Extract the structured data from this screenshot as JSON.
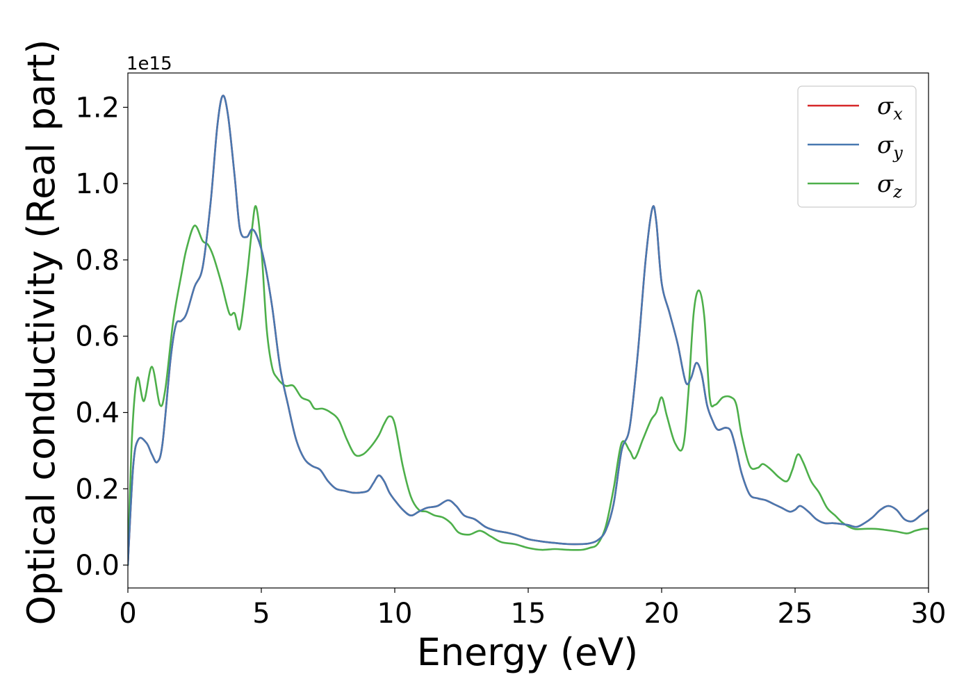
{
  "chart_data": {
    "type": "line",
    "title": "",
    "xlabel": "Energy (eV)",
    "ylabel": "Optical conductivity (Real part)",
    "y_offset_label": "1e15",
    "y_scale": 1000000000000000.0,
    "xlim": [
      0,
      30
    ],
    "ylim": [
      -0.06,
      1.29
    ],
    "xticks": [
      0,
      5,
      10,
      15,
      20,
      25,
      30
    ],
    "xtick_labels": [
      "0",
      "5",
      "10",
      "15",
      "20",
      "25",
      "30"
    ],
    "yticks": [
      0.0,
      0.2,
      0.4,
      0.6,
      0.8,
      1.0,
      1.2
    ],
    "ytick_labels": [
      "0.0",
      "0.2",
      "0.4",
      "0.6",
      "0.8",
      "1.0",
      "1.2"
    ],
    "grid": false,
    "legend_position": "top-right",
    "series": [
      {
        "name": "σ",
        "subscript": "x",
        "color": "#d62728",
        "x": [
          0,
          0.2,
          0.4,
          0.7,
          0.9,
          1.1,
          1.3,
          1.6,
          1.8,
          2.0,
          2.2,
          2.5,
          2.8,
          3.1,
          3.35,
          3.55,
          3.75,
          4.0,
          4.2,
          4.45,
          4.65,
          4.85,
          5.1,
          5.4,
          5.7,
          6.0,
          6.3,
          6.6,
          6.9,
          7.2,
          7.5,
          7.8,
          8.1,
          8.4,
          8.7,
          9.0,
          9.2,
          9.4,
          9.6,
          9.8,
          10.0,
          10.3,
          10.6,
          10.9,
          11.2,
          11.6,
          12.0,
          12.3,
          12.6,
          13.0,
          13.4,
          13.8,
          14.2,
          14.6,
          15.0,
          15.5,
          16.0,
          16.5,
          17.0,
          17.3,
          17.6,
          17.9,
          18.2,
          18.5,
          18.8,
          19.1,
          19.4,
          19.65,
          19.8,
          20.0,
          20.3,
          20.6,
          20.9,
          21.1,
          21.3,
          21.5,
          21.7,
          21.9,
          22.1,
          22.4,
          22.6,
          22.8,
          23.0,
          23.3,
          23.6,
          23.9,
          24.2,
          24.5,
          24.8,
          25.0,
          25.2,
          25.5,
          25.8,
          26.1,
          26.4,
          26.7,
          27.0,
          27.3,
          27.6,
          27.9,
          28.2,
          28.5,
          28.8,
          29.1,
          29.4,
          29.7,
          30.0
        ],
        "y": [
          0.0,
          0.26,
          0.33,
          0.32,
          0.29,
          0.27,
          0.32,
          0.54,
          0.63,
          0.64,
          0.66,
          0.73,
          0.78,
          0.95,
          1.15,
          1.23,
          1.18,
          1.02,
          0.88,
          0.86,
          0.88,
          0.86,
          0.8,
          0.68,
          0.52,
          0.42,
          0.33,
          0.28,
          0.26,
          0.25,
          0.22,
          0.2,
          0.195,
          0.19,
          0.19,
          0.195,
          0.215,
          0.235,
          0.22,
          0.19,
          0.17,
          0.145,
          0.13,
          0.14,
          0.15,
          0.155,
          0.17,
          0.155,
          0.13,
          0.12,
          0.1,
          0.09,
          0.085,
          0.078,
          0.068,
          0.062,
          0.058,
          0.055,
          0.055,
          0.057,
          0.065,
          0.09,
          0.16,
          0.3,
          0.36,
          0.55,
          0.8,
          0.935,
          0.9,
          0.74,
          0.66,
          0.58,
          0.48,
          0.49,
          0.53,
          0.5,
          0.42,
          0.38,
          0.355,
          0.36,
          0.35,
          0.3,
          0.24,
          0.185,
          0.175,
          0.17,
          0.16,
          0.15,
          0.14,
          0.145,
          0.155,
          0.14,
          0.12,
          0.11,
          0.11,
          0.108,
          0.105,
          0.1,
          0.11,
          0.125,
          0.145,
          0.155,
          0.145,
          0.12,
          0.115,
          0.13,
          0.145
        ]
      },
      {
        "name": "σ",
        "subscript": "y",
        "color": "#4878b0",
        "x": [
          0,
          0.2,
          0.4,
          0.7,
          0.9,
          1.1,
          1.3,
          1.6,
          1.8,
          2.0,
          2.2,
          2.5,
          2.8,
          3.1,
          3.35,
          3.55,
          3.75,
          4.0,
          4.2,
          4.45,
          4.65,
          4.85,
          5.1,
          5.4,
          5.7,
          6.0,
          6.3,
          6.6,
          6.9,
          7.2,
          7.5,
          7.8,
          8.1,
          8.4,
          8.7,
          9.0,
          9.2,
          9.4,
          9.6,
          9.8,
          10.0,
          10.3,
          10.6,
          10.9,
          11.2,
          11.6,
          12.0,
          12.3,
          12.6,
          13.0,
          13.4,
          13.8,
          14.2,
          14.6,
          15.0,
          15.5,
          16.0,
          16.5,
          17.0,
          17.3,
          17.6,
          17.9,
          18.2,
          18.5,
          18.8,
          19.1,
          19.4,
          19.65,
          19.8,
          20.0,
          20.3,
          20.6,
          20.9,
          21.1,
          21.3,
          21.5,
          21.7,
          21.9,
          22.1,
          22.4,
          22.6,
          22.8,
          23.0,
          23.3,
          23.6,
          23.9,
          24.2,
          24.5,
          24.8,
          25.0,
          25.2,
          25.5,
          25.8,
          26.1,
          26.4,
          26.7,
          27.0,
          27.3,
          27.6,
          27.9,
          28.2,
          28.5,
          28.8,
          29.1,
          29.4,
          29.7,
          30.0
        ],
        "y": [
          0.0,
          0.26,
          0.33,
          0.32,
          0.29,
          0.27,
          0.32,
          0.54,
          0.63,
          0.64,
          0.66,
          0.73,
          0.78,
          0.95,
          1.15,
          1.23,
          1.18,
          1.02,
          0.88,
          0.86,
          0.88,
          0.86,
          0.8,
          0.68,
          0.52,
          0.42,
          0.33,
          0.28,
          0.26,
          0.25,
          0.22,
          0.2,
          0.195,
          0.19,
          0.19,
          0.195,
          0.215,
          0.235,
          0.22,
          0.19,
          0.17,
          0.145,
          0.13,
          0.14,
          0.15,
          0.155,
          0.17,
          0.155,
          0.13,
          0.12,
          0.1,
          0.09,
          0.085,
          0.078,
          0.068,
          0.062,
          0.058,
          0.055,
          0.055,
          0.057,
          0.065,
          0.09,
          0.16,
          0.3,
          0.36,
          0.55,
          0.8,
          0.935,
          0.9,
          0.74,
          0.66,
          0.58,
          0.48,
          0.49,
          0.53,
          0.5,
          0.42,
          0.38,
          0.355,
          0.36,
          0.35,
          0.3,
          0.24,
          0.185,
          0.175,
          0.17,
          0.16,
          0.15,
          0.14,
          0.145,
          0.155,
          0.14,
          0.12,
          0.11,
          0.11,
          0.108,
          0.105,
          0.1,
          0.11,
          0.125,
          0.145,
          0.155,
          0.145,
          0.12,
          0.115,
          0.13,
          0.145
        ]
      },
      {
        "name": "σ",
        "subscript": "z",
        "color": "#4daf4a",
        "x": [
          0,
          0.15,
          0.35,
          0.6,
          0.9,
          1.2,
          1.4,
          1.7,
          2.0,
          2.2,
          2.5,
          2.8,
          3.0,
          3.2,
          3.5,
          3.8,
          4.0,
          4.2,
          4.45,
          4.65,
          4.8,
          5.0,
          5.2,
          5.4,
          5.6,
          5.9,
          6.2,
          6.5,
          6.8,
          7.0,
          7.3,
          7.6,
          7.9,
          8.2,
          8.5,
          8.8,
          9.1,
          9.4,
          9.6,
          9.8,
          10.0,
          10.3,
          10.6,
          10.9,
          11.2,
          11.5,
          11.8,
          12.1,
          12.4,
          12.8,
          13.2,
          13.6,
          14.0,
          14.5,
          15.0,
          15.5,
          16.0,
          16.5,
          17.0,
          17.3,
          17.6,
          17.9,
          18.2,
          18.5,
          18.8,
          19.0,
          19.3,
          19.6,
          19.8,
          20.0,
          20.2,
          20.5,
          20.8,
          21.0,
          21.2,
          21.4,
          21.6,
          21.8,
          22.0,
          22.3,
          22.6,
          22.8,
          23.0,
          23.3,
          23.6,
          23.8,
          24.1,
          24.4,
          24.7,
          24.9,
          25.1,
          25.3,
          25.6,
          25.9,
          26.2,
          26.5,
          26.8,
          27.2,
          27.6,
          28.0,
          28.4,
          28.8,
          29.2,
          29.5,
          29.8,
          30.0
        ],
        "y": [
          0.0,
          0.33,
          0.49,
          0.43,
          0.52,
          0.42,
          0.46,
          0.64,
          0.76,
          0.83,
          0.89,
          0.85,
          0.84,
          0.81,
          0.74,
          0.66,
          0.66,
          0.62,
          0.75,
          0.88,
          0.94,
          0.83,
          0.62,
          0.52,
          0.49,
          0.47,
          0.47,
          0.44,
          0.43,
          0.41,
          0.41,
          0.4,
          0.38,
          0.33,
          0.29,
          0.29,
          0.31,
          0.34,
          0.37,
          0.39,
          0.37,
          0.26,
          0.18,
          0.145,
          0.14,
          0.13,
          0.125,
          0.11,
          0.085,
          0.08,
          0.09,
          0.075,
          0.06,
          0.055,
          0.045,
          0.04,
          0.042,
          0.04,
          0.04,
          0.045,
          0.055,
          0.1,
          0.2,
          0.32,
          0.3,
          0.28,
          0.33,
          0.38,
          0.4,
          0.44,
          0.39,
          0.32,
          0.31,
          0.45,
          0.66,
          0.72,
          0.65,
          0.44,
          0.42,
          0.44,
          0.44,
          0.42,
          0.34,
          0.26,
          0.255,
          0.265,
          0.25,
          0.23,
          0.22,
          0.25,
          0.29,
          0.27,
          0.22,
          0.19,
          0.15,
          0.13,
          0.11,
          0.095,
          0.095,
          0.095,
          0.092,
          0.088,
          0.083,
          0.09,
          0.095,
          0.095
        ]
      }
    ]
  }
}
